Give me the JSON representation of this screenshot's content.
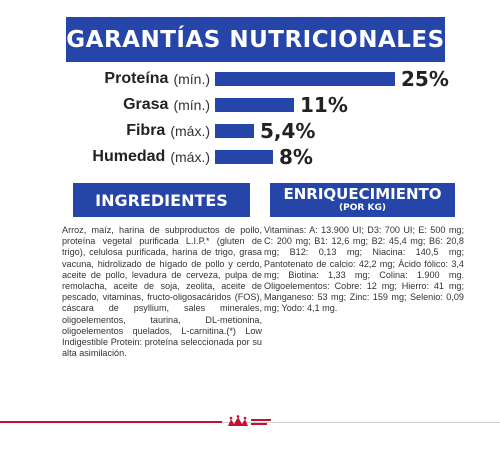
{
  "title": "GARANTÍAS NUTRICIONALES",
  "nutrients": [
    {
      "name": "Proteína",
      "qualifier": "(mín.)",
      "value": "25%",
      "percent": 25
    },
    {
      "name": "Grasa",
      "qualifier": "(mín.)",
      "value": "11%",
      "percent": 11
    },
    {
      "name": "Fibra",
      "qualifier": "(máx.)",
      "value": "5,4%",
      "percent": 5.4
    },
    {
      "name": "Humedad",
      "qualifier": "(máx.)",
      "value": "8%",
      "percent": 8
    }
  ],
  "ingredients": {
    "heading": "INGREDIENTES",
    "text": "Arroz, maíz, harina de subproductos de pollo, proteína vegetal purificada L.I.P.* (gluten de trigo), celulosa purificada, harina de trigo, grasa vacuna, hidrolizado de hígado de pollo y cerdo, aceite de pollo, levadura de cerveza, pulpa de remolacha, aceite de soja, zeolita, aceite de pescado, vitaminas, fructo-oligosacáridos (FOS), cáscara de psyllium, sales minerales, oligoelementos, taurina, DL-metionina, oligoelementos quelados, L-carnitina.(*) Low Indigestible Protein: proteína seleccionada por su alta asimilación."
  },
  "enrichment": {
    "heading": "ENRIQUECIMIENTO",
    "subheading": "(POR KG)",
    "text": "Vitaminas: A: 13.900 UI; D3: 700 UI; E: 500 mg; C: 200 mg; B1: 12,6 mg; B2: 45,4 mg; B6: 20,8 mg; B12: 0,13 mg; Niacina: 140,5 mg; Pantotenato de calcio: 42,2 mg; Ácido fólico: 3,4 mg; Biotina: 1,33 mg; Colina: 1.900 mg. Oligoelementos: Cobre: 12 mg; Hierro: 41 mg; Manganeso: 53 mg; Zinc: 159 mg; Selenio: 0,09 mg; Yodo: 4,1 mg."
  },
  "colors": {
    "primary": "#2546a8",
    "accent": "#c8102e"
  },
  "footer": {
    "logo_icon": "royal-canin-crown-icon"
  }
}
